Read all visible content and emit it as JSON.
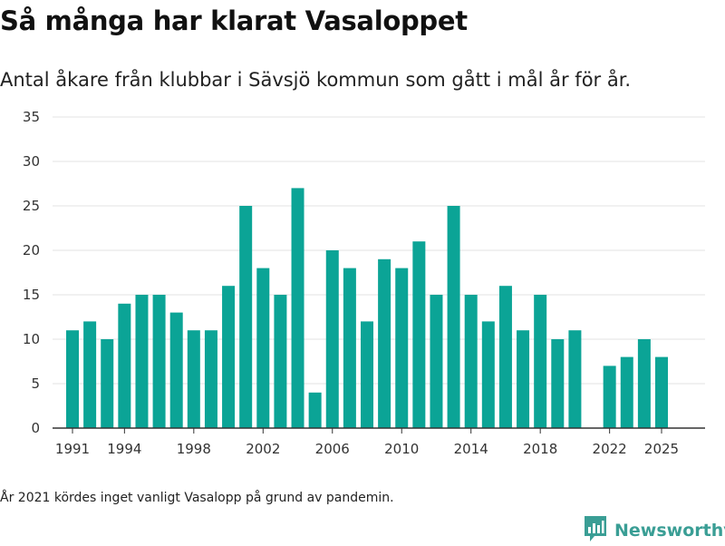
{
  "header": {
    "title": "Så många har klarat Vasaloppet",
    "subtitle": "Antal åkare från klubbar i Sävsjö kommun som gått i mål år för år."
  },
  "footnote": "År 2021 kördes inget vanligt Vasalopp på grund av pandemin.",
  "brand": {
    "name": "Newsworthy",
    "icon": "newsworthy-logo-icon",
    "color": "#3a9e95"
  },
  "colors": {
    "bar": "#0ba496",
    "grid": "#e3e3e3",
    "axis": "#333333"
  },
  "chart_data": {
    "type": "bar",
    "title": "Så många har klarat Vasaloppet",
    "subtitle": "Antal åkare från klubbar i Sävsjö kommun som gått i mål år för år.",
    "xlabel": "",
    "ylabel": "",
    "ylim": [
      0,
      35
    ],
    "yticks": [
      0,
      5,
      10,
      15,
      20,
      25,
      30,
      35
    ],
    "xticks": [
      1991,
      1994,
      1998,
      2002,
      2006,
      2010,
      2014,
      2018,
      2022,
      2025
    ],
    "grid": true,
    "x": [
      1991,
      1992,
      1993,
      1994,
      1995,
      1996,
      1997,
      1998,
      1999,
      2000,
      2001,
      2002,
      2003,
      2004,
      2005,
      2006,
      2007,
      2008,
      2009,
      2010,
      2011,
      2012,
      2013,
      2014,
      2015,
      2016,
      2017,
      2018,
      2019,
      2020,
      2022,
      2023,
      2024,
      2025
    ],
    "values": [
      11,
      12,
      10,
      14,
      15,
      15,
      13,
      11,
      11,
      16,
      25,
      18,
      15,
      27,
      4,
      20,
      18,
      12,
      19,
      18,
      21,
      15,
      25,
      15,
      12,
      16,
      11,
      15,
      10,
      11,
      7,
      8,
      10,
      8
    ]
  }
}
